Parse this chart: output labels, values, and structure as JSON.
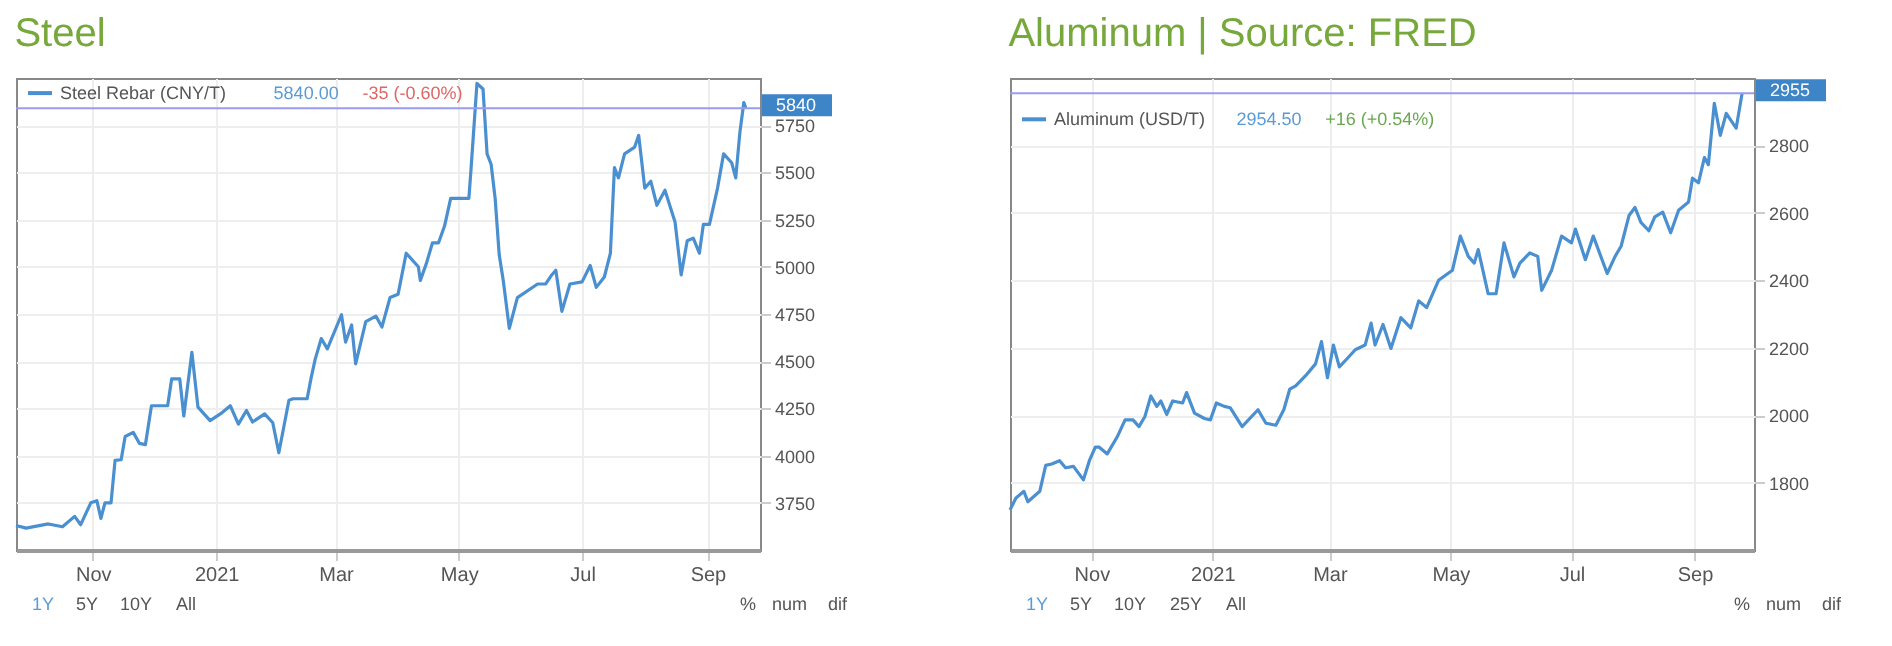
{
  "chart_data": [
    {
      "type": "line",
      "title": "Steel",
      "grid": true,
      "legend": "top left",
      "x": [
        "2020-09-24",
        "2020-09-29",
        "2020-10-10",
        "2020-10-17",
        "2020-10-23",
        "2020-10-26",
        "2020-10-31",
        "2020-11-03",
        "2020-11-05",
        "2020-11-07",
        "2020-11-10",
        "2020-11-12",
        "2020-11-15",
        "2020-11-17",
        "2020-11-21",
        "2020-11-24",
        "2020-11-27",
        "2020-11-30",
        "2020-12-08",
        "2020-12-10",
        "2020-12-14",
        "2020-12-16",
        "2020-12-20",
        "2020-12-23",
        "2020-12-29",
        "2021-01-04",
        "2021-01-08",
        "2021-01-12",
        "2021-01-16",
        "2021-01-19",
        "2021-01-25",
        "2021-01-29",
        "2021-02-01",
        "2021-02-06",
        "2021-02-08",
        "2021-02-15",
        "2021-02-17",
        "2021-02-19",
        "2021-02-22",
        "2021-02-25",
        "2021-03-04",
        "2021-03-06",
        "2021-03-09",
        "2021-03-11",
        "2021-03-16",
        "2021-03-21",
        "2021-03-24",
        "2021-03-28",
        "2021-04-01",
        "2021-04-05",
        "2021-04-11",
        "2021-04-12",
        "2021-04-15",
        "2021-04-18",
        "2021-04-21",
        "2021-04-24",
        "2021-04-27",
        "2021-05-06",
        "2021-05-07",
        "2021-05-10",
        "2021-05-13",
        "2021-05-15",
        "2021-05-17",
        "2021-05-19",
        "2021-05-21",
        "2021-05-23",
        "2021-05-26",
        "2021-05-30",
        "2021-06-09",
        "2021-06-13",
        "2021-06-16",
        "2021-06-18",
        "2021-06-21",
        "2021-06-25",
        "2021-07-01",
        "2021-07-05",
        "2021-07-08",
        "2021-07-12",
        "2021-07-15",
        "2021-07-17",
        "2021-07-19",
        "2021-07-22",
        "2021-07-27",
        "2021-07-29",
        "2021-08-01",
        "2021-08-04",
        "2021-08-07",
        "2021-08-11",
        "2021-08-16",
        "2021-08-19",
        "2021-08-22",
        "2021-08-25",
        "2021-08-28",
        "2021-08-30",
        "2021-09-02",
        "2021-09-06",
        "2021-09-09",
        "2021-09-13",
        "2021-09-15",
        "2021-09-17",
        "2021-09-19",
        "2021-09-20"
      ],
      "series": [
        {
          "name": "Steel Rebar (CNY/T)",
          "color": "#4a90d0",
          "values": [
            3630,
            3616,
            3638,
            3623,
            3678,
            3634,
            3750,
            3761,
            3667,
            3750,
            3750,
            3975,
            3978,
            4101,
            4123,
            4065,
            4058,
            4264,
            4264,
            4406,
            4406,
            4210,
            4547,
            4257,
            4185,
            4228,
            4264,
            4167,
            4239,
            4178,
            4221,
            4174,
            4015,
            4293,
            4301,
            4301,
            4413,
            4511,
            4620,
            4565,
            4746,
            4601,
            4692,
            4486,
            4710,
            4739,
            4681,
            4837,
            4855,
            5072,
            5000,
            4928,
            5018,
            5127,
            5127,
            5217,
            5362,
            5362,
            5507,
            5971,
            5942,
            5598,
            5543,
            5362,
            5065,
            4928,
            4674,
            4837,
            4909,
            4909,
            4957,
            4982,
            4764,
            4909,
            4920,
            5007,
            4891,
            4946,
            5072,
            5525,
            5471,
            5598,
            5634,
            5696,
            5417,
            5453,
            5326,
            5406,
            5236,
            4957,
            5138,
            5152,
            5072,
            5225,
            5225,
            5417,
            5598,
            5551,
            5471,
            5707,
            5870,
            5840
          ]
        }
      ],
      "xlim": [
        "2020-09-24",
        "2021-09-27"
      ],
      "xticks": [
        {
          "value": "2020-11-01",
          "label": "Nov"
        },
        {
          "value": "2021-01-01",
          "label": "2021"
        },
        {
          "value": "2021-03-01",
          "label": "Mar"
        },
        {
          "value": "2021-05-01",
          "label": "May"
        },
        {
          "value": "2021-07-01",
          "label": "Jul"
        },
        {
          "value": "2021-09-01",
          "label": "Sep"
        }
      ],
      "ylim": [
        3500,
        6000
      ],
      "yticks": [
        3750,
        4000,
        4250,
        4500,
        4750,
        5000,
        5250,
        5500,
        5750
      ],
      "ref_lines": [
        {
          "axis": "y",
          "value": 5840,
          "label": "5840",
          "color": "#9b9bf0"
        }
      ],
      "annotations": [
        "5840.00",
        "-35 (-0.60%)",
        "1Y",
        "5Y",
        "10Y",
        "All",
        "%",
        "num",
        "dif"
      ]
    },
    {
      "type": "line",
      "title": "Aluminum | Source: FRED",
      "grid": true,
      "legend": "top left",
      "x": [
        "2020-09-21",
        "2020-09-24",
        "2020-09-28",
        "2020-09-30",
        "2020-10-04",
        "2020-10-06",
        "2020-10-09",
        "2020-10-12",
        "2020-10-16",
        "2020-10-19",
        "2020-10-23",
        "2020-10-28",
        "2020-10-31",
        "2020-11-03",
        "2020-11-05",
        "2020-11-09",
        "2020-11-14",
        "2020-11-18",
        "2020-11-22",
        "2020-11-25",
        "2020-11-28",
        "2020-12-01",
        "2020-12-04",
        "2020-12-06",
        "2020-12-09",
        "2020-12-12",
        "2020-12-17",
        "2020-12-19",
        "2020-12-23",
        "2020-12-28",
        "2020-12-31",
        "2021-01-03",
        "2021-01-07",
        "2021-01-10",
        "2021-01-16",
        "2021-01-24",
        "2021-01-28",
        "2021-02-02",
        "2021-02-06",
        "2021-02-09",
        "2021-02-12",
        "2021-02-17",
        "2021-02-22",
        "2021-02-25",
        "2021-02-28",
        "2021-03-03",
        "2021-03-06",
        "2021-03-10",
        "2021-03-14",
        "2021-03-19",
        "2021-03-22",
        "2021-03-24",
        "2021-03-28",
        "2021-04-01",
        "2021-04-06",
        "2021-04-11",
        "2021-04-15",
        "2021-04-19",
        "2021-04-25",
        "2021-05-02",
        "2021-05-06",
        "2021-05-10",
        "2021-05-13",
        "2021-05-15",
        "2021-05-20",
        "2021-05-24",
        "2021-05-28",
        "2021-06-02",
        "2021-06-05",
        "2021-06-10",
        "2021-06-14",
        "2021-06-16",
        "2021-06-21",
        "2021-06-26",
        "2021-07-01",
        "2021-07-03",
        "2021-07-08",
        "2021-07-12",
        "2021-07-19",
        "2021-07-23",
        "2021-07-26",
        "2021-07-30",
        "2021-08-02",
        "2021-08-05",
        "2021-08-09",
        "2021-08-12",
        "2021-08-16",
        "2021-08-20",
        "2021-08-24",
        "2021-08-29",
        "2021-08-31",
        "2021-09-03",
        "2021-09-06",
        "2021-09-08",
        "2021-09-11",
        "2021-09-14",
        "2021-09-17",
        "2021-09-22",
        "2021-09-25"
      ],
      "series": [
        {
          "name": "Aluminum (USD/T)",
          "color": "#4a90d0",
          "values": [
            1719,
            1754,
            1774,
            1743,
            1764,
            1774,
            1851,
            1855,
            1865,
            1844,
            1848,
            1808,
            1865,
            1905,
            1905,
            1885,
            1935,
            1986,
            1986,
            1966,
            1996,
            2057,
            2026,
            2042,
            2002,
            2042,
            2036,
            2067,
            2006,
            1990,
            1986,
            2036,
            2026,
            2022,
            1966,
            2016,
            1976,
            1970,
            2016,
            2077,
            2087,
            2117,
            2152,
            2218,
            2111,
            2208,
            2143,
            2168,
            2194,
            2208,
            2273,
            2208,
            2269,
            2198,
            2289,
            2259,
            2339,
            2319,
            2400,
            2430,
            2531,
            2471,
            2451,
            2491,
            2360,
            2360,
            2511,
            2410,
            2451,
            2481,
            2471,
            2370,
            2430,
            2531,
            2511,
            2552,
            2461,
            2531,
            2420,
            2471,
            2501,
            2592,
            2616,
            2572,
            2547,
            2588,
            2602,
            2541,
            2608,
            2632,
            2703,
            2689,
            2764,
            2743,
            2925,
            2830,
            2895,
            2851,
            2955
          ]
        }
      ],
      "xlim": [
        "2020-09-21",
        "2021-10-01"
      ],
      "xticks": [
        {
          "value": "2020-11-01",
          "label": "Nov"
        },
        {
          "value": "2021-01-01",
          "label": "2021"
        },
        {
          "value": "2021-03-01",
          "label": "Mar"
        },
        {
          "value": "2021-05-01",
          "label": "May"
        },
        {
          "value": "2021-07-01",
          "label": "Jul"
        },
        {
          "value": "2021-09-01",
          "label": "Sep"
        }
      ],
      "ylim": [
        1600,
        3000
      ],
      "yticks": [
        1800,
        2000,
        2200,
        2400,
        2600,
        2800
      ],
      "ref_lines": [
        {
          "axis": "y",
          "value": 2955,
          "label": "2955",
          "color": "#9b9bf0"
        }
      ],
      "annotations": [
        "2954.50",
        "+16 (+0.54%)",
        "1Y",
        "5Y",
        "10Y",
        "25Y",
        "All",
        "%",
        "num",
        "dif"
      ]
    }
  ]
}
